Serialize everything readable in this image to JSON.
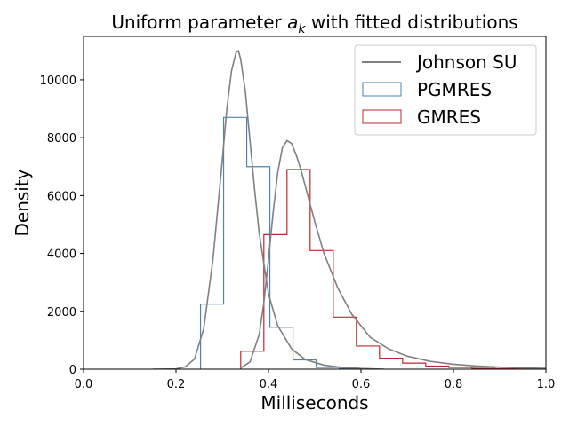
{
  "chart_data": {
    "type": "line",
    "title_prefix": "Uniform parameter ",
    "title_math": "a",
    "title_sub": "k",
    "title_suffix": " with fitted distributions",
    "xlabel": "Milliseconds",
    "ylabel": "Density",
    "xlim": [
      0.0,
      1.0
    ],
    "ylim": [
      0,
      11500
    ],
    "xticks": [
      0.0,
      0.2,
      0.4,
      0.6,
      0.8,
      1.0
    ],
    "xtick_labels": [
      "0.0",
      "0.2",
      "0.4",
      "0.6",
      "0.8",
      "1.0"
    ],
    "yticks": [
      0,
      2000,
      4000,
      6000,
      8000,
      10000
    ],
    "ytick_labels": [
      "0",
      "2000",
      "4000",
      "6000",
      "8000",
      "10000"
    ],
    "legend_position": "upper-right",
    "legend": [
      "Johnson SU",
      "PGMRES",
      "GMRES"
    ],
    "histograms": [
      {
        "name": "PGMRES",
        "color": "#4e82b4",
        "edges": [
          0.253,
          0.303,
          0.353,
          0.403,
          0.453,
          0.503,
          0.553,
          0.603
        ],
        "counts": [
          2250,
          8700,
          7000,
          1450,
          320,
          60,
          20
        ]
      },
      {
        "name": "GMRES",
        "color": "#c0272d",
        "edges": [
          0.34,
          0.39,
          0.44,
          0.49,
          0.54,
          0.59,
          0.64,
          0.69,
          0.74,
          0.79,
          0.84,
          0.89,
          0.94,
          0.99
        ],
        "counts": [
          620,
          4650,
          6900,
          4100,
          1800,
          800,
          380,
          210,
          110,
          60,
          30,
          15,
          10
        ]
      }
    ],
    "fits": [
      {
        "name": "Johnson SU",
        "for": "PGMRES",
        "color": "#808080",
        "x": [
          0.15,
          0.2,
          0.22,
          0.24,
          0.26,
          0.28,
          0.3,
          0.31,
          0.32,
          0.33,
          0.335,
          0.34,
          0.35,
          0.36,
          0.37,
          0.38,
          0.4,
          0.42,
          0.45,
          0.48,
          0.52,
          0.56,
          0.6,
          0.65
        ],
        "y": [
          0,
          10,
          80,
          350,
          1400,
          3800,
          7200,
          9000,
          10300,
          10950,
          11000,
          10700,
          9600,
          7900,
          6200,
          4700,
          2600,
          1500,
          700,
          330,
          140,
          60,
          25,
          0
        ]
      },
      {
        "name": "Johnson SU",
        "for": "GMRES",
        "color": "#808080",
        "x": [
          0.34,
          0.36,
          0.38,
          0.39,
          0.4,
          0.41,
          0.42,
          0.43,
          0.44,
          0.45,
          0.46,
          0.47,
          0.48,
          0.5,
          0.52,
          0.55,
          0.58,
          0.62,
          0.66,
          0.7,
          0.75,
          0.8,
          0.85,
          0.9,
          0.95,
          1.0
        ],
        "y": [
          40,
          250,
          1200,
          2300,
          3800,
          5400,
          6800,
          7650,
          7900,
          7800,
          7400,
          6900,
          6300,
          5100,
          4000,
          2800,
          1900,
          1100,
          700,
          450,
          270,
          170,
          110,
          70,
          45,
          30
        ]
      }
    ]
  }
}
